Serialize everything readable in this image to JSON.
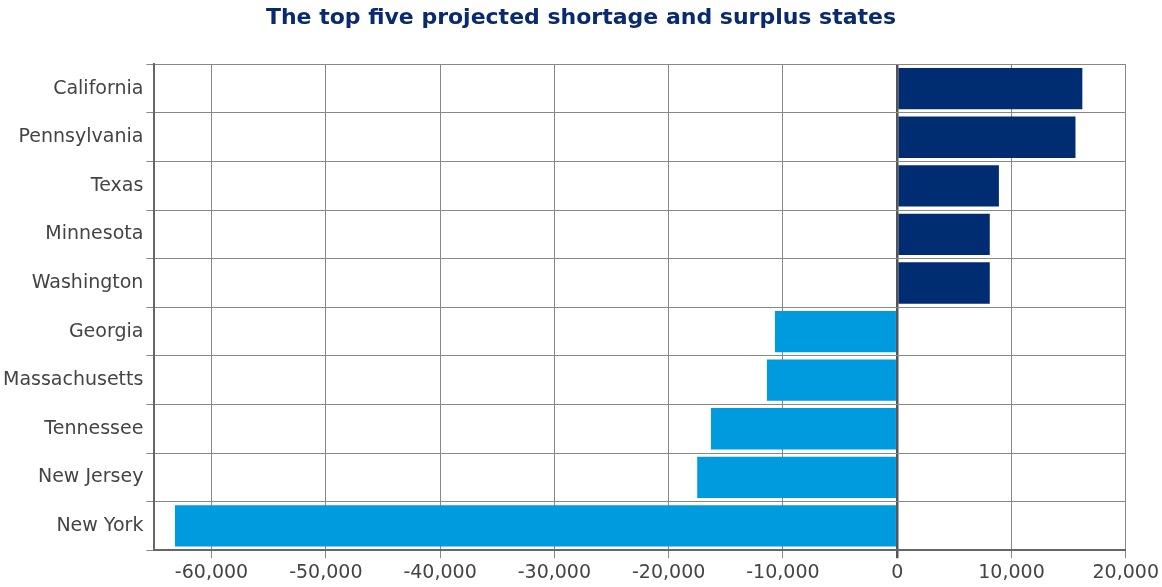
{
  "chart_data": {
    "type": "bar",
    "orientation": "horizontal",
    "title": "The top five projected shortage and surplus states",
    "categories": [
      "California",
      "Pennsylvania",
      "Texas",
      "Minnesota",
      "Washington",
      "Georgia",
      "Massachusetts",
      "Tennessee",
      "New Jersey",
      "New York"
    ],
    "values": [
      16200,
      15600,
      8900,
      8100,
      8100,
      -10700,
      -11400,
      -16300,
      -17500,
      -63200
    ],
    "colors": [
      "#002d72",
      "#002d72",
      "#002d72",
      "#002d72",
      "#002d72",
      "#009ade",
      "#009ade",
      "#009ade",
      "#009ade",
      "#009ade"
    ],
    "xlim": [
      -65000,
      20000
    ],
    "xticks": [
      {
        "value": -60000,
        "label": "-60,000"
      },
      {
        "value": -50000,
        "label": "-50,000"
      },
      {
        "value": -40000,
        "label": "-40,000"
      },
      {
        "value": -30000,
        "label": "-30,000"
      },
      {
        "value": -20000,
        "label": "-20,000"
      },
      {
        "value": -10000,
        "label": "-10,000"
      },
      0,
      {
        "value": 10000,
        "label": "10,000"
      },
      {
        "value": 20000,
        "label": "20,000"
      }
    ],
    "grid": true,
    "legend": false
  }
}
